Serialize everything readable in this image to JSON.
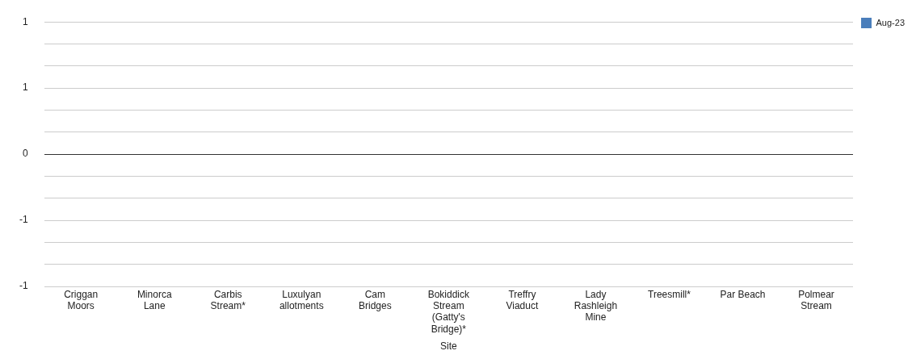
{
  "chart_data": {
    "type": "bar",
    "xlabel": "Site",
    "categories": [
      "Criggan Moors",
      "Minorca Lane",
      "Carbis Stream*",
      "Luxulyan allotments",
      "Cam Bridges",
      "Bokiddick Stream (Gatty's Bridge)*",
      "Treffry Viaduct",
      "Lady Rashleigh Mine",
      "Treesmill*",
      "Par Beach",
      "Polmear Stream"
    ],
    "series": [
      {
        "name": "Aug-23",
        "color": "#4a7ebb",
        "values": [
          0,
          0,
          0,
          0,
          0,
          0,
          0,
          0,
          0,
          0,
          0
        ]
      }
    ],
    "ylim": [
      -1,
      1
    ],
    "yticks": [
      {
        "value": -1,
        "label": "-1"
      },
      {
        "value": -0.833,
        "label": null
      },
      {
        "value": -0.667,
        "label": null
      },
      {
        "value": -0.5,
        "label": "-1"
      },
      {
        "value": -0.333,
        "label": null
      },
      {
        "value": -0.167,
        "label": null
      },
      0,
      {
        "value": 0.167,
        "label": null
      },
      {
        "value": 0.333,
        "label": null
      },
      {
        "value": 0.5,
        "label": "1"
      },
      {
        "value": 0.667,
        "label": null
      },
      {
        "value": 0.833,
        "label": null
      },
      {
        "value": 1,
        "label": "1"
      }
    ],
    "grid": "y",
    "legend": "top right"
  }
}
